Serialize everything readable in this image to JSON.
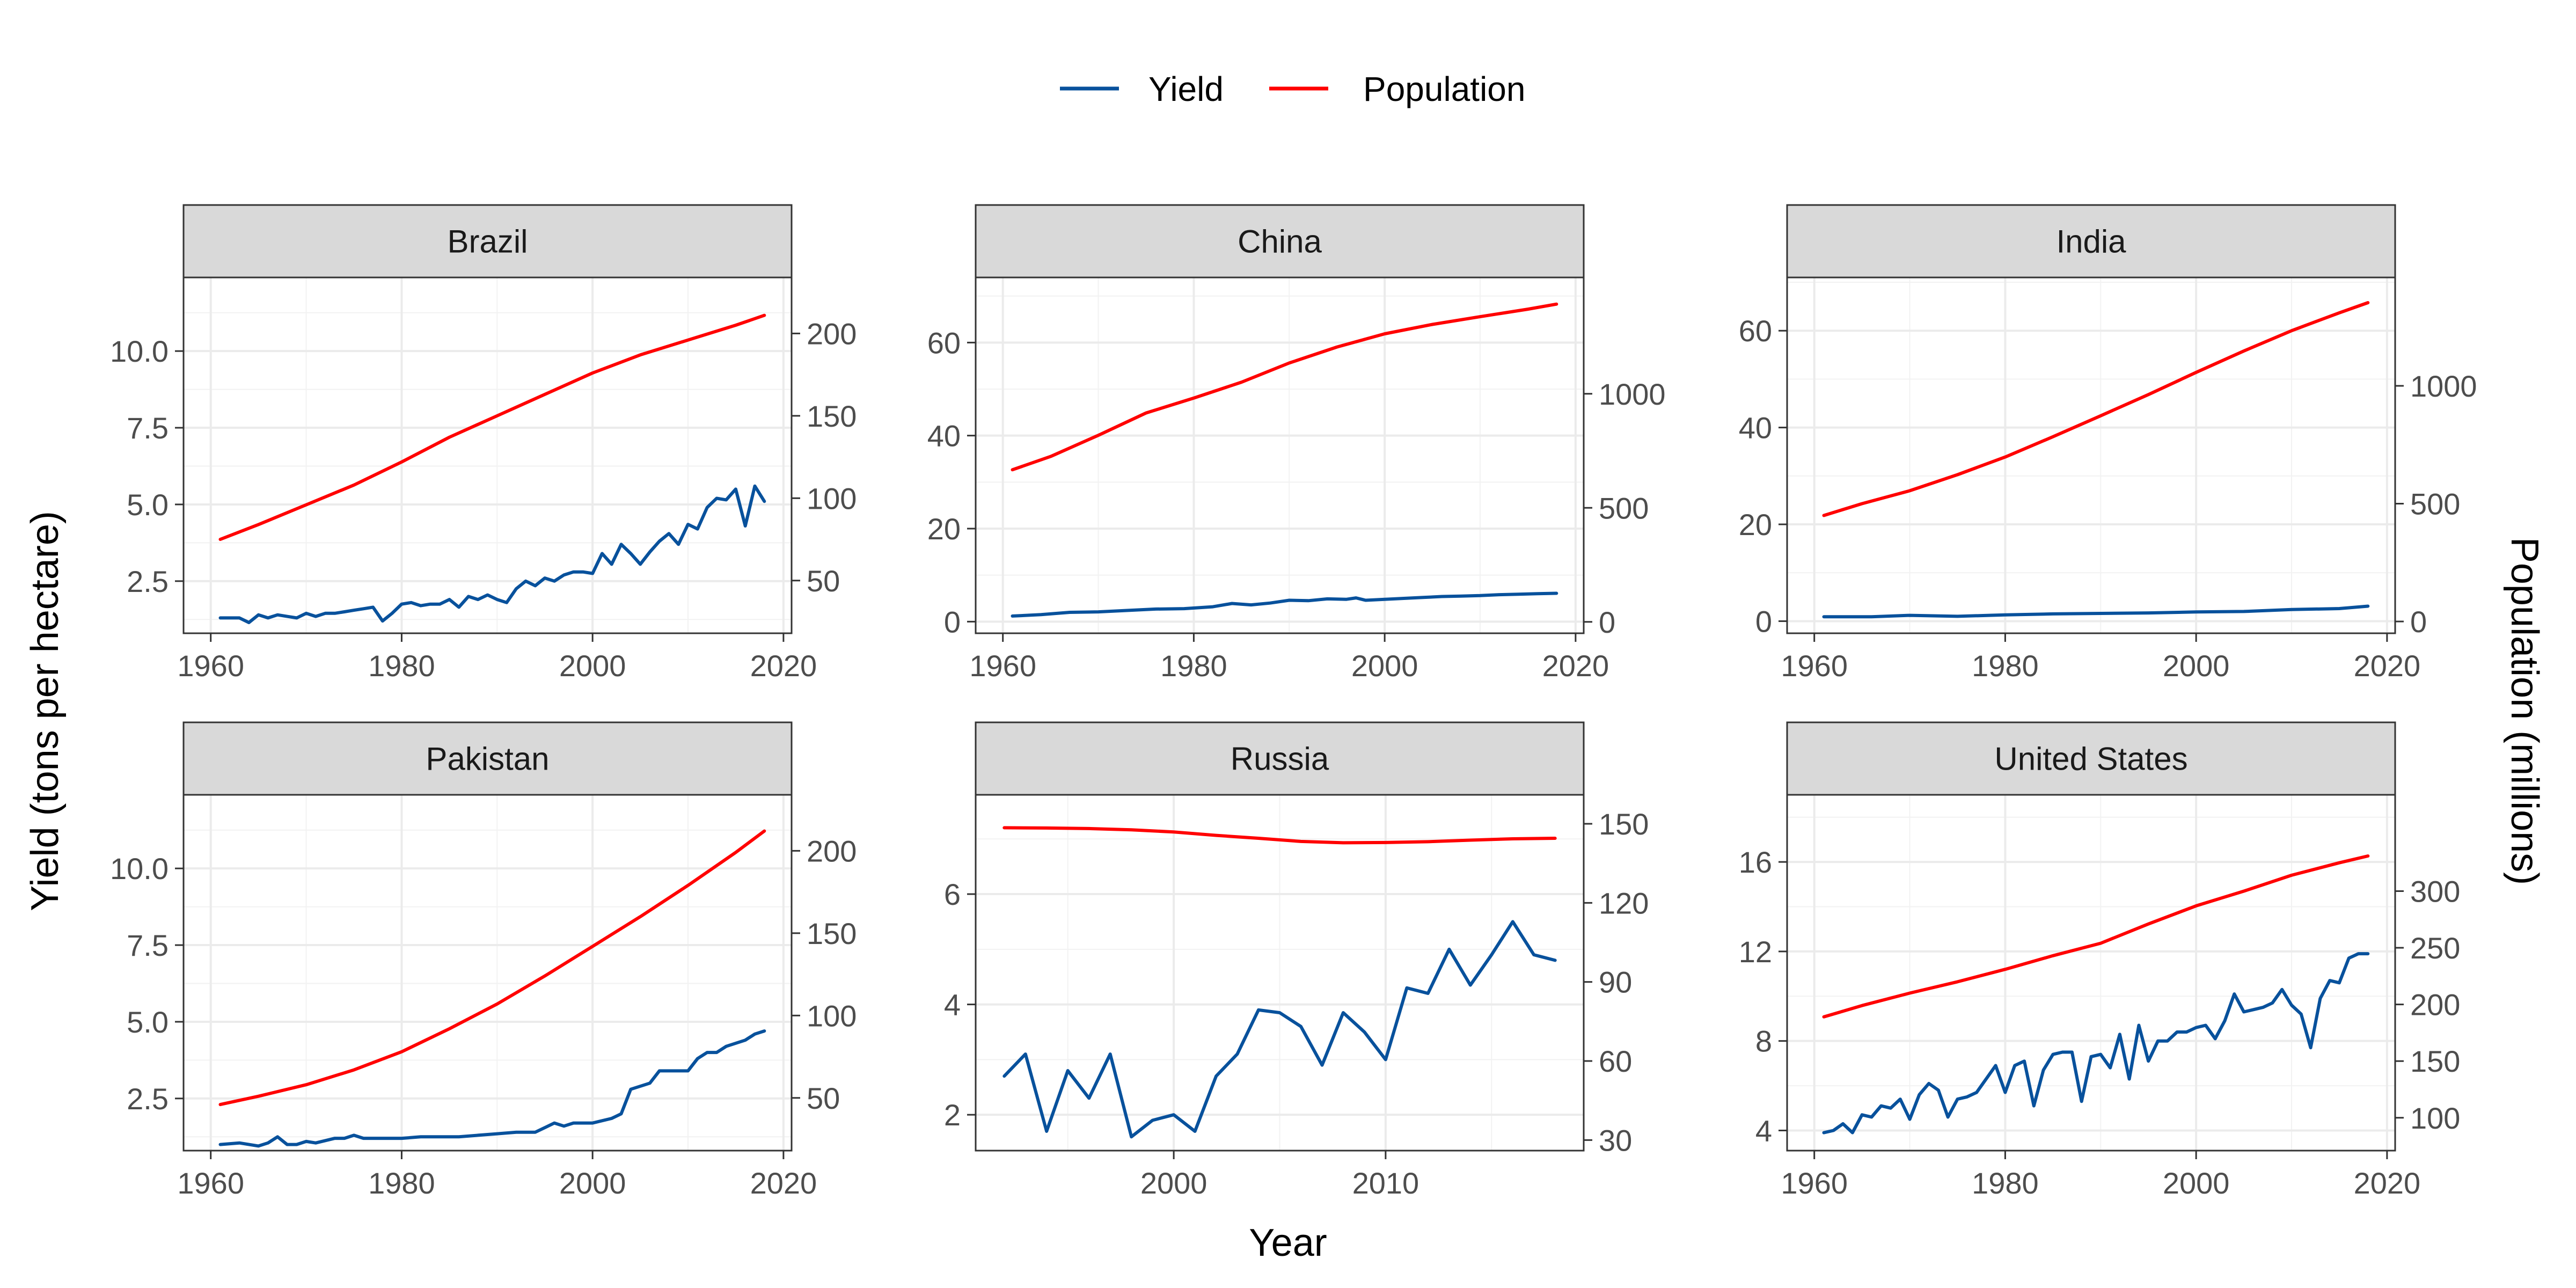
{
  "legend": {
    "items": [
      {
        "label": "Yield",
        "color": "#08519c"
      },
      {
        "label": "Population",
        "color": "#ff0000"
      }
    ],
    "placement": "top"
  },
  "axes": {
    "x_title": "Year",
    "y_left_title": "Yield (tons per hectare)",
    "y_right_title": "Population (millions)"
  },
  "chart_data": [
    {
      "type": "line",
      "title": "Brazil",
      "x_ticks": [
        1960,
        1980,
        2000,
        2020
      ],
      "y_ticks": [
        2.5,
        5.0,
        7.5,
        10.0
      ],
      "y_tick_labels": [
        "2.5",
        "5.0",
        "7.5",
        "10.0"
      ],
      "y2_ticks": [
        50,
        100,
        150,
        200
      ],
      "xlim": [
        1957.15,
        2020.85
      ],
      "ylim": [
        0.8,
        12.4
      ],
      "y2lim": [
        18,
        234
      ],
      "grid": true,
      "series": [
        {
          "name": "Yield",
          "axis": "left",
          "color": "#08519c",
          "x": [
            1961,
            1962,
            1963,
            1964,
            1965,
            1966,
            1967,
            1968,
            1969,
            1970,
            1971,
            1972,
            1973,
            1974,
            1975,
            1976,
            1977,
            1978,
            1979,
            1980,
            1981,
            1982,
            1983,
            1984,
            1985,
            1986,
            1987,
            1988,
            1989,
            1990,
            1991,
            1992,
            1993,
            1994,
            1995,
            1996,
            1997,
            1998,
            1999,
            2000,
            2001,
            2002,
            2003,
            2004,
            2005,
            2006,
            2007,
            2008,
            2009,
            2010,
            2011,
            2012,
            2013,
            2014,
            2015,
            2016,
            2017,
            2018
          ],
          "y": [
            1.3,
            1.3,
            1.3,
            1.15,
            1.4,
            1.3,
            1.4,
            1.35,
            1.3,
            1.45,
            1.35,
            1.45,
            1.45,
            1.5,
            1.55,
            1.6,
            1.65,
            1.2,
            1.45,
            1.75,
            1.8,
            1.7,
            1.75,
            1.75,
            1.9,
            1.65,
            2.0,
            1.9,
            2.05,
            1.9,
            1.8,
            2.25,
            2.5,
            2.35,
            2.6,
            2.5,
            2.7,
            2.8,
            2.8,
            2.75,
            3.4,
            3.05,
            3.7,
            3.4,
            3.05,
            3.45,
            3.8,
            4.05,
            3.7,
            4.35,
            4.2,
            4.9,
            5.2,
            5.15,
            5.5,
            4.3,
            5.6,
            5.1
          ]
        },
        {
          "name": "Population",
          "axis": "right",
          "color": "#ff0000",
          "x": [
            1961,
            1965,
            1970,
            1975,
            1980,
            1985,
            1990,
            1995,
            2000,
            2005,
            2010,
            2015,
            2018
          ],
          "y": [
            75,
            84,
            96,
            108,
            122,
            137,
            150,
            163,
            176,
            187,
            196,
            205,
            211
          ]
        }
      ]
    },
    {
      "type": "line",
      "title": "China",
      "x_ticks": [
        1960,
        1980,
        2000,
        2020
      ],
      "y_ticks": [
        0,
        20,
        40,
        60
      ],
      "y_tick_labels": [
        "0",
        "20",
        "40",
        "60"
      ],
      "y2_ticks": [
        0,
        500,
        1000
      ],
      "xlim": [
        1957.15,
        2020.85
      ],
      "ylim": [
        -2.5,
        74
      ],
      "y2lim": [
        -50,
        1510
      ],
      "grid": true,
      "series": [
        {
          "name": "Yield",
          "axis": "left",
          "color": "#08519c",
          "x": [
            1961,
            1964,
            1967,
            1970,
            1973,
            1976,
            1979,
            1982,
            1984,
            1986,
            1988,
            1990,
            1992,
            1994,
            1996,
            1997,
            1998,
            2000,
            2002,
            2004,
            2006,
            2008,
            2010,
            2012,
            2014,
            2016,
            2018
          ],
          "y": [
            1.2,
            1.5,
            2.0,
            2.1,
            2.4,
            2.7,
            2.8,
            3.2,
            3.9,
            3.6,
            4.0,
            4.6,
            4.5,
            4.9,
            4.8,
            5.1,
            4.6,
            4.8,
            5.0,
            5.2,
            5.4,
            5.5,
            5.6,
            5.8,
            5.9,
            6.0,
            6.1
          ]
        },
        {
          "name": "Population",
          "axis": "right",
          "color": "#ff0000",
          "x": [
            1961,
            1965,
            1970,
            1975,
            1980,
            1985,
            1990,
            1995,
            2000,
            2005,
            2010,
            2015,
            2018
          ],
          "y": [
            667,
            725,
            818,
            916,
            981,
            1051,
            1135,
            1205,
            1263,
            1304,
            1338,
            1371,
            1393
          ]
        }
      ]
    },
    {
      "type": "line",
      "title": "India",
      "x_ticks": [
        1960,
        1980,
        2000,
        2020
      ],
      "y_ticks": [
        0,
        20,
        40,
        60
      ],
      "y_tick_labels": [
        "0",
        "20",
        "40",
        "60"
      ],
      "y2_ticks": [
        0,
        500,
        1000
      ],
      "xlim": [
        1957.15,
        2020.85
      ],
      "ylim": [
        -2.5,
        71
      ],
      "y2lim": [
        -50,
        1460
      ],
      "grid": true,
      "series": [
        {
          "name": "Yield",
          "axis": "left",
          "color": "#08519c",
          "x": [
            1961,
            1966,
            1970,
            1975,
            1980,
            1985,
            1990,
            1995,
            2000,
            2005,
            2010,
            2015,
            2018
          ],
          "y": [
            0.9,
            0.9,
            1.2,
            1.0,
            1.3,
            1.5,
            1.6,
            1.7,
            1.9,
            2.0,
            2.4,
            2.6,
            3.1
          ]
        },
        {
          "name": "Population",
          "axis": "right",
          "color": "#ff0000",
          "x": [
            1961,
            1965,
            1970,
            1975,
            1980,
            1985,
            1990,
            1995,
            2000,
            2005,
            2010,
            2015,
            2018
          ],
          "y": [
            450,
            500,
            555,
            623,
            698,
            784,
            873,
            963,
            1057,
            1148,
            1234,
            1310,
            1353
          ]
        }
      ]
    },
    {
      "type": "line",
      "title": "Pakistan",
      "x_ticks": [
        1960,
        1980,
        2000,
        2020
      ],
      "y_ticks": [
        2.5,
        5.0,
        7.5,
        10.0
      ],
      "y_tick_labels": [
        "2.5",
        "5.0",
        "7.5",
        "10.0"
      ],
      "y2_ticks": [
        50,
        100,
        150,
        200
      ],
      "xlim": [
        1957.15,
        2020.85
      ],
      "ylim": [
        0.8,
        12.4
      ],
      "y2lim": [
        18,
        234
      ],
      "grid": true,
      "series": [
        {
          "name": "Yield",
          "axis": "left",
          "color": "#08519c",
          "x": [
            1961,
            1963,
            1965,
            1966,
            1967,
            1968,
            1969,
            1970,
            1971,
            1973,
            1974,
            1975,
            1976,
            1978,
            1980,
            1982,
            1984,
            1986,
            1988,
            1990,
            1992,
            1994,
            1996,
            1997,
            1998,
            2000,
            2002,
            2003,
            2004,
            2006,
            2007,
            2008,
            2010,
            2011,
            2012,
            2013,
            2014,
            2016,
            2017,
            2018
          ],
          "y": [
            1.0,
            1.05,
            0.95,
            1.05,
            1.25,
            1.0,
            1.0,
            1.1,
            1.05,
            1.2,
            1.2,
            1.3,
            1.2,
            1.2,
            1.2,
            1.25,
            1.25,
            1.25,
            1.3,
            1.35,
            1.4,
            1.4,
            1.7,
            1.6,
            1.7,
            1.7,
            1.85,
            2.0,
            2.8,
            3.0,
            3.4,
            3.4,
            3.4,
            3.8,
            4.0,
            4.0,
            4.2,
            4.4,
            4.6,
            4.7
          ]
        },
        {
          "name": "Population",
          "axis": "right",
          "color": "#ff0000",
          "x": [
            1961,
            1965,
            1970,
            1975,
            1980,
            1985,
            1990,
            1995,
            2000,
            2005,
            2010,
            2015,
            2018
          ],
          "y": [
            46,
            51,
            58,
            67,
            78,
            92,
            107,
            124,
            142,
            160,
            179,
            199,
            212
          ]
        }
      ]
    },
    {
      "type": "line",
      "title": "Russia",
      "x_ticks": [
        2000,
        2010
      ],
      "y_ticks": [
        2,
        4,
        6
      ],
      "y_tick_labels": [
        "2",
        "4",
        "6"
      ],
      "y2_ticks": [
        30,
        60,
        90,
        120,
        150
      ],
      "xlim": [
        1990.65,
        2019.35
      ],
      "ylim": [
        1.35,
        7.8
      ],
      "y2lim": [
        26,
        161
      ],
      "grid": true,
      "series": [
        {
          "name": "Yield",
          "axis": "left",
          "color": "#08519c",
          "x": [
            1992,
            1993,
            1994,
            1995,
            1996,
            1997,
            1998,
            1999,
            2000,
            2001,
            2002,
            2003,
            2004,
            2005,
            2006,
            2007,
            2008,
            2009,
            2010,
            2011,
            2012,
            2013,
            2014,
            2015,
            2016,
            2017,
            2018
          ],
          "y": [
            2.7,
            3.1,
            1.7,
            2.8,
            2.3,
            3.1,
            1.6,
            1.9,
            2.0,
            1.7,
            2.7,
            3.1,
            3.9,
            3.85,
            3.6,
            2.9,
            3.85,
            3.5,
            3.0,
            4.3,
            4.2,
            5.0,
            4.35,
            4.9,
            5.5,
            4.9,
            4.8
          ]
        },
        {
          "name": "Population",
          "axis": "right",
          "color": "#ff0000",
          "x": [
            1992,
            1994,
            1996,
            1998,
            2000,
            2002,
            2004,
            2006,
            2008,
            2010,
            2012,
            2014,
            2016,
            2018
          ],
          "y": [
            148.5,
            148.4,
            148.2,
            147.7,
            146.9,
            145.6,
            144.5,
            143.3,
            142.8,
            142.9,
            143.2,
            143.8,
            144.3,
            144.5
          ]
        }
      ]
    },
    {
      "type": "line",
      "title": "United States",
      "x_ticks": [
        1960,
        1980,
        2000,
        2020
      ],
      "y_ticks": [
        4,
        8,
        12,
        16
      ],
      "y_tick_labels": [
        "4",
        "8",
        "12",
        "16"
      ],
      "y2_ticks": [
        100,
        150,
        200,
        250,
        300
      ],
      "xlim": [
        1957.15,
        2020.85
      ],
      "ylim": [
        3.1,
        19.0
      ],
      "y2lim": [
        71,
        385
      ],
      "grid": true,
      "series": [
        {
          "name": "Yield",
          "axis": "left",
          "color": "#08519c",
          "x": [
            1961,
            1962,
            1963,
            1964,
            1965,
            1966,
            1967,
            1968,
            1969,
            1970,
            1971,
            1972,
            1973,
            1974,
            1975,
            1976,
            1977,
            1978,
            1979,
            1980,
            1981,
            1982,
            1983,
            1984,
            1985,
            1986,
            1987,
            1988,
            1989,
            1990,
            1991,
            1992,
            1993,
            1994,
            1995,
            1996,
            1997,
            1998,
            1999,
            2000,
            2001,
            2002,
            2003,
            2004,
            2005,
            2006,
            2007,
            2008,
            2009,
            2010,
            2011,
            2012,
            2013,
            2014,
            2015,
            2016,
            2017,
            2018
          ],
          "y": [
            3.9,
            4.0,
            4.3,
            3.9,
            4.7,
            4.6,
            5.1,
            5.0,
            5.4,
            4.5,
            5.6,
            6.1,
            5.8,
            4.6,
            5.4,
            5.5,
            5.7,
            6.3,
            6.9,
            5.7,
            6.9,
            7.1,
            5.1,
            6.7,
            7.4,
            7.5,
            7.5,
            5.3,
            7.3,
            7.4,
            6.8,
            8.3,
            6.3,
            8.7,
            7.1,
            8.0,
            8.0,
            8.4,
            8.4,
            8.6,
            8.7,
            8.1,
            8.9,
            10.1,
            9.3,
            9.4,
            9.5,
            9.7,
            10.3,
            9.6,
            9.2,
            7.7,
            9.9,
            10.7,
            10.6,
            11.7,
            11.9,
            11.9
          ]
        },
        {
          "name": "Population",
          "axis": "right",
          "color": "#ff0000",
          "x": [
            1961,
            1965,
            1970,
            1975,
            1980,
            1985,
            1990,
            1995,
            2000,
            2005,
            2010,
            2015,
            2018
          ],
          "y": [
            189,
            199,
            210,
            220,
            231,
            243,
            254,
            271,
            287,
            300,
            314,
            325,
            331
          ]
        }
      ]
    }
  ]
}
